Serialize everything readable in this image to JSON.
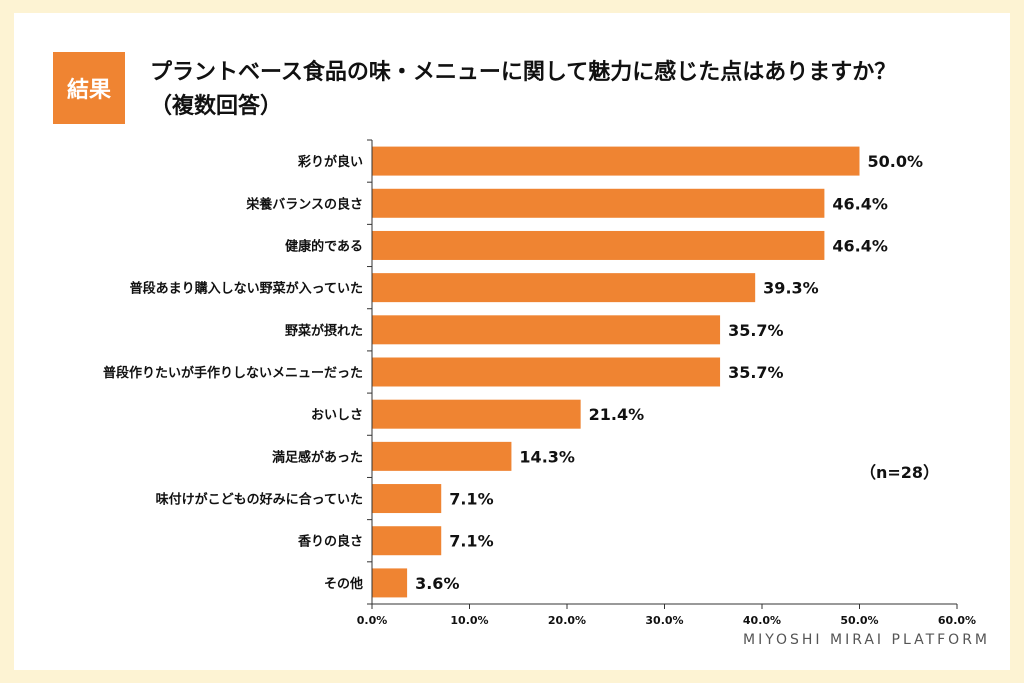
{
  "header": {
    "badge": "結果",
    "title_line1": "プラントベース食品の味・メニューに関して魅力に感じた点はありますか？",
    "title_line2": "（複数回答）"
  },
  "note": "（n=28）",
  "brand": "MIYOSHI MIRAI PLATFORM",
  "colors": {
    "bar": "#ef8432",
    "badge": "#ef8432",
    "background": "#fdf3d3"
  },
  "chart_data": {
    "type": "bar",
    "orientation": "horizontal",
    "title": "プラントベース食品の味・メニューに関して魅力に感じた点はありますか？（複数回答）",
    "categories": [
      "彩りが良い",
      "栄養バランスの良さ",
      "健康的である",
      "普段あまり購入しない野菜が入っていた",
      "野菜が摂れた",
      "普段作りたいが手作りしないメニューだった",
      "おいしさ",
      "満足感があった",
      "味付けがこどもの好みに合っていた",
      "香りの良さ",
      "その他"
    ],
    "values": [
      50.0,
      46.4,
      46.4,
      39.3,
      35.7,
      35.7,
      21.4,
      14.3,
      7.1,
      7.1,
      3.6
    ],
    "value_labels": [
      "50.0%",
      "46.4%",
      "46.4%",
      "39.3%",
      "35.7%",
      "35.7%",
      "21.4%",
      "14.3%",
      "7.1%",
      "7.1%",
      "3.6%"
    ],
    "xlim": [
      0,
      60
    ],
    "xticks": [
      "0.0%",
      "10.0%",
      "20.0%",
      "30.0%",
      "40.0%",
      "50.0%",
      "60.0%"
    ],
    "grid": false
  }
}
